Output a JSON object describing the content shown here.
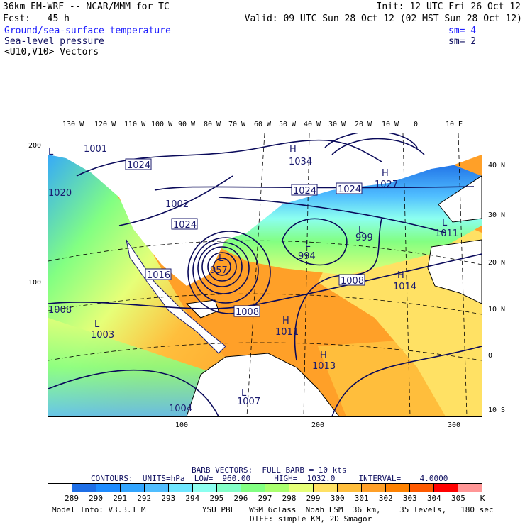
{
  "header": {
    "title": "36km EM-WRF -- NCAR/MMM for TC",
    "init": "Init: 12 UTC Fri 26 Oct 12",
    "fcst": "Fcst:   45 h",
    "valid": "Valid: 09 UTC Sun 28 Oct 12 (02 MST Sun 28 Oct 12)",
    "fields": [
      {
        "label": "Ground/sea-surface temperature",
        "sm": "sm= 4"
      },
      {
        "label": "Sea-level pressure",
        "sm": "sm= 2"
      },
      {
        "label": "<U10,V10> Vectors"
      }
    ]
  },
  "axes": {
    "top": [
      "130 W",
      "120 W",
      "110 W",
      "100 W",
      "90 W",
      "80 W",
      "70 W",
      "60 W",
      "50 W",
      "40 W",
      "30 W",
      "20 W",
      "10 W",
      "0",
      "10 E"
    ],
    "right": [
      "40 N",
      "30 N",
      "20 N",
      "10 N",
      "0",
      "10 S"
    ],
    "left": [
      "200",
      "100"
    ],
    "bottom": [
      "100",
      "200",
      "300"
    ]
  },
  "map": {
    "boxed_labels": [
      "1024",
      "1024",
      "1016",
      "1008",
      "1008",
      "1024",
      "1024"
    ],
    "labels": [
      "1001",
      "1034",
      "1027",
      "999",
      "994",
      "1014",
      "1011",
      "1013",
      "957",
      "1003",
      "1007",
      "1004",
      "1011",
      "1020",
      "1008",
      "1002"
    ],
    "highs": [
      "H",
      "H",
      "H",
      "H",
      "H"
    ],
    "lows": [
      "L",
      "L",
      "L",
      "L",
      "L",
      "L",
      "L"
    ]
  },
  "footer": {
    "barbs": "BARB VECTORS:  FULL BARB = 10 kts",
    "contours": "CONTOURS:  UNITS=hPa  LOW=  960.00     HIGH=  1032.0     INTERVAL=    4.0000",
    "colors": [
      "#ffffff",
      "#1e6ee6",
      "#1e8cff",
      "#32a5ff",
      "#50beff",
      "#6ee6ff",
      "#8cfff0",
      "#82ffc8",
      "#82ff82",
      "#aaff6e",
      "#e6ff78",
      "#ffe164",
      "#ffbe3c",
      "#ffa028",
      "#ff8200",
      "#ff5a00",
      "#ff0000",
      "#ff9696"
    ],
    "scale_labels": [
      "289",
      "290",
      "291",
      "292",
      "293",
      "294",
      "295",
      "296",
      "297",
      "298",
      "299",
      "300",
      "301",
      "302",
      "303",
      "304",
      "305"
    ],
    "unit": "K",
    "model_info": "Model Info: V3.3.1 M            YSU PBL   WSM 6class  Noah LSM  36 km,    35 levels,   180 sec",
    "diff": "DIFF: simple KM, 2D Smagor"
  }
}
